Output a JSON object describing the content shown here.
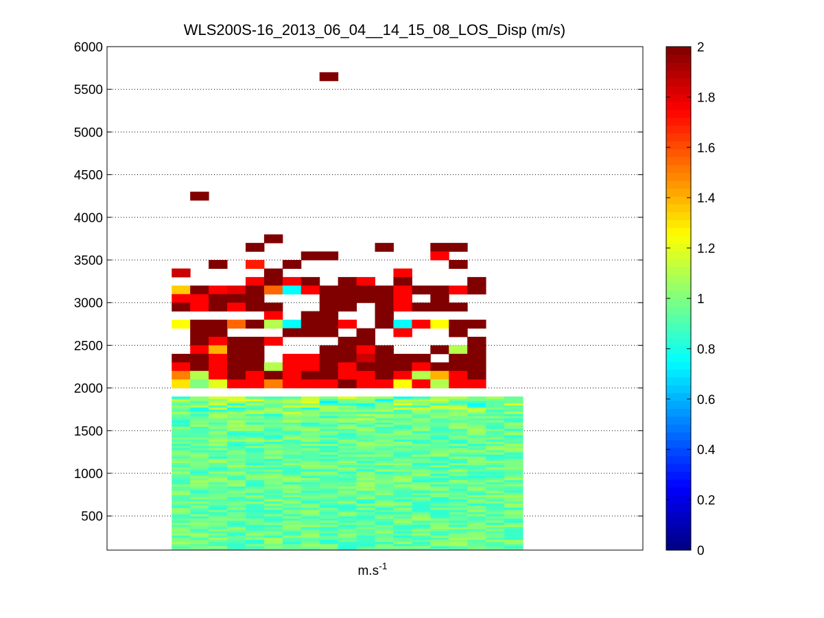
{
  "chart_data": {
    "type": "heatmap",
    "title": "WLS200S-16_2013_06_04__14_15_08_LOS_Disp (m/s)",
    "xlabel_base": "m.s",
    "xlabel_exp": "-1",
    "ylabel": "",
    "ylim": [
      100,
      6000
    ],
    "yticks": [
      500,
      1000,
      1500,
      2000,
      2500,
      3000,
      3500,
      4000,
      4500,
      5000,
      5500,
      6000
    ],
    "grid": "horizontal dotted",
    "colormap": "jet",
    "colorbar": {
      "range": [
        0,
        2
      ],
      "ticks": [
        0,
        0.2,
        0.4,
        0.6,
        0.8,
        1,
        1.2,
        1.4,
        1.6,
        1.8,
        2
      ]
    },
    "columns": 19,
    "column_range": [
      3.5,
      22.5
    ],
    "column_start": 5,
    "xlim": [
      0,
      29
    ],
    "dense_layer_top": 2050,
    "dense_layer_mean": 0.95,
    "cells": [
      [
        13,
        5650,
        2.0
      ],
      [
        6,
        4250,
        2.0
      ],
      [
        10,
        3750,
        2.0
      ],
      [
        9,
        3650,
        2.0
      ],
      [
        16,
        3650,
        2.0
      ],
      [
        19,
        3650,
        2.0
      ],
      [
        20,
        3650,
        2.0
      ],
      [
        12,
        3550,
        2.0
      ],
      [
        13,
        3550,
        2.0
      ],
      [
        19,
        3550,
        1.75
      ],
      [
        7,
        3450,
        2.0
      ],
      [
        9,
        3450,
        1.7
      ],
      [
        11,
        3450,
        2.0
      ],
      [
        20,
        3450,
        2.0
      ],
      [
        5,
        3350,
        1.85
      ],
      [
        10,
        3350,
        2.0
      ],
      [
        17,
        3350,
        1.75
      ],
      [
        9,
        3250,
        1.75
      ],
      [
        10,
        3250,
        2.0
      ],
      [
        11,
        3250,
        1.75
      ],
      [
        12,
        3250,
        2.0
      ],
      [
        14,
        3250,
        2.0
      ],
      [
        15,
        3250,
        1.75
      ],
      [
        17,
        3250,
        2.0
      ],
      [
        21,
        3250,
        2.0
      ],
      [
        5,
        3150,
        1.35
      ],
      [
        6,
        3150,
        2.0
      ],
      [
        7,
        3150,
        1.75
      ],
      [
        8,
        3150,
        1.8
      ],
      [
        9,
        3150,
        2.0
      ],
      [
        10,
        3150,
        1.55
      ],
      [
        11,
        3150,
        0.75
      ],
      [
        12,
        3150,
        1.75
      ],
      [
        13,
        3150,
        2.0
      ],
      [
        14,
        3150,
        2.0
      ],
      [
        15,
        3150,
        2.0
      ],
      [
        16,
        3150,
        2.0
      ],
      [
        17,
        3150,
        1.75
      ],
      [
        18,
        3150,
        2.0
      ],
      [
        19,
        3150,
        2.0
      ],
      [
        20,
        3150,
        1.75
      ],
      [
        21,
        3150,
        2.0
      ],
      [
        5,
        3050,
        1.75
      ],
      [
        6,
        3050,
        1.75
      ],
      [
        7,
        3050,
        2.0
      ],
      [
        8,
        3050,
        2.0
      ],
      [
        9,
        3050,
        2.0
      ],
      [
        13,
        3050,
        2.0
      ],
      [
        14,
        3050,
        2.0
      ],
      [
        15,
        3050,
        2.0
      ],
      [
        16,
        3050,
        2.0
      ],
      [
        17,
        3050,
        1.75
      ],
      [
        19,
        3050,
        2.0
      ],
      [
        5,
        2950,
        2.0
      ],
      [
        6,
        2950,
        1.75
      ],
      [
        7,
        2950,
        2.0
      ],
      [
        8,
        2950,
        1.75
      ],
      [
        9,
        2950,
        2.0
      ],
      [
        10,
        2950,
        2.0
      ],
      [
        13,
        2950,
        2.0
      ],
      [
        14,
        2950,
        2.0
      ],
      [
        16,
        2950,
        2.0
      ],
      [
        17,
        2950,
        1.75
      ],
      [
        18,
        2950,
        2.0
      ],
      [
        19,
        2950,
        2.0
      ],
      [
        20,
        2950,
        2.0
      ],
      [
        10,
        2850,
        1.75
      ],
      [
        12,
        2850,
        2.0
      ],
      [
        13,
        2850,
        2.0
      ],
      [
        16,
        2850,
        2.0
      ],
      [
        5,
        2750,
        1.25
      ],
      [
        6,
        2750,
        2.0
      ],
      [
        7,
        2750,
        2.0
      ],
      [
        8,
        2750,
        1.55
      ],
      [
        9,
        2750,
        2.0
      ],
      [
        10,
        2750,
        1.1
      ],
      [
        11,
        2750,
        0.75
      ],
      [
        12,
        2750,
        2.0
      ],
      [
        13,
        2750,
        2.0
      ],
      [
        14,
        2750,
        1.75
      ],
      [
        16,
        2750,
        2.0
      ],
      [
        17,
        2750,
        0.75
      ],
      [
        18,
        2750,
        1.75
      ],
      [
        19,
        2750,
        1.25
      ],
      [
        20,
        2750,
        2.0
      ],
      [
        21,
        2750,
        2.0
      ],
      [
        6,
        2650,
        2.0
      ],
      [
        7,
        2650,
        2.0
      ],
      [
        11,
        2650,
        2.0
      ],
      [
        12,
        2650,
        2.0
      ],
      [
        13,
        2650,
        2.0
      ],
      [
        15,
        2650,
        2.0
      ],
      [
        17,
        2650,
        1.75
      ],
      [
        20,
        2650,
        2.0
      ],
      [
        6,
        2550,
        2.0
      ],
      [
        7,
        2550,
        1.75
      ],
      [
        8,
        2550,
        2.0
      ],
      [
        9,
        2550,
        2.0
      ],
      [
        10,
        2550,
        1.75
      ],
      [
        14,
        2550,
        2.0
      ],
      [
        15,
        2550,
        2.0
      ],
      [
        21,
        2550,
        2.0
      ],
      [
        6,
        2450,
        1.75
      ],
      [
        7,
        2450,
        1.4
      ],
      [
        8,
        2450,
        2.0
      ],
      [
        9,
        2450,
        2.0
      ],
      [
        13,
        2450,
        2.0
      ],
      [
        14,
        2450,
        2.0
      ],
      [
        15,
        2450,
        1.75
      ],
      [
        16,
        2450,
        2.0
      ],
      [
        19,
        2450,
        2.0
      ],
      [
        20,
        2450,
        1.1
      ],
      [
        21,
        2450,
        2.0
      ],
      [
        5,
        2350,
        2.0
      ],
      [
        6,
        2350,
        2.0
      ],
      [
        7,
        2350,
        1.75
      ],
      [
        8,
        2350,
        2.0
      ],
      [
        9,
        2350,
        2.0
      ],
      [
        11,
        2350,
        1.75
      ],
      [
        12,
        2350,
        1.75
      ],
      [
        13,
        2350,
        2.0
      ],
      [
        14,
        2350,
        2.0
      ],
      [
        15,
        2350,
        1.85
      ],
      [
        16,
        2350,
        2.0
      ],
      [
        17,
        2350,
        2.0
      ],
      [
        18,
        2350,
        2.0
      ],
      [
        20,
        2350,
        2.0
      ],
      [
        21,
        2350,
        2.0
      ],
      [
        5,
        2250,
        1.75
      ],
      [
        6,
        2250,
        2.0
      ],
      [
        7,
        2250,
        1.75
      ],
      [
        8,
        2250,
        2.0
      ],
      [
        9,
        2250,
        2.0
      ],
      [
        10,
        2250,
        1.1
      ],
      [
        11,
        2250,
        1.75
      ],
      [
        12,
        2250,
        1.75
      ],
      [
        13,
        2250,
        2.0
      ],
      [
        14,
        2250,
        1.75
      ],
      [
        15,
        2250,
        2.0
      ],
      [
        16,
        2250,
        2.0
      ],
      [
        17,
        2250,
        2.0
      ],
      [
        18,
        2250,
        1.75
      ],
      [
        19,
        2250,
        2.0
      ],
      [
        20,
        2250,
        2.0
      ],
      [
        21,
        2250,
        2.0
      ],
      [
        5,
        2150,
        1.5
      ],
      [
        6,
        2150,
        1.1
      ],
      [
        7,
        2150,
        1.75
      ],
      [
        8,
        2150,
        2.0
      ],
      [
        9,
        2150,
        1.75
      ],
      [
        10,
        2150,
        2.0
      ],
      [
        11,
        2150,
        1.75
      ],
      [
        12,
        2150,
        2.0
      ],
      [
        13,
        2150,
        2.0
      ],
      [
        14,
        2150,
        1.75
      ],
      [
        15,
        2150,
        1.75
      ],
      [
        16,
        2150,
        2.0
      ],
      [
        17,
        2150,
        1.75
      ],
      [
        18,
        2150,
        1.1
      ],
      [
        19,
        2150,
        1.4
      ],
      [
        20,
        2150,
        1.75
      ],
      [
        21,
        2150,
        2.0
      ],
      [
        5,
        2050,
        1.3
      ],
      [
        6,
        2050,
        1.0
      ],
      [
        7,
        2050,
        1.2
      ],
      [
        8,
        2050,
        1.75
      ],
      [
        9,
        2050,
        1.75
      ],
      [
        10,
        2050,
        1.5
      ],
      [
        11,
        2050,
        1.75
      ],
      [
        12,
        2050,
        1.75
      ],
      [
        13,
        2050,
        1.75
      ],
      [
        14,
        2050,
        2.0
      ],
      [
        15,
        2050,
        1.75
      ],
      [
        16,
        2050,
        1.75
      ],
      [
        17,
        2050,
        1.25
      ],
      [
        18,
        2050,
        1.75
      ],
      [
        19,
        2050,
        1.1
      ],
      [
        20,
        2050,
        1.75
      ],
      [
        21,
        2050,
        1.75
      ]
    ]
  }
}
